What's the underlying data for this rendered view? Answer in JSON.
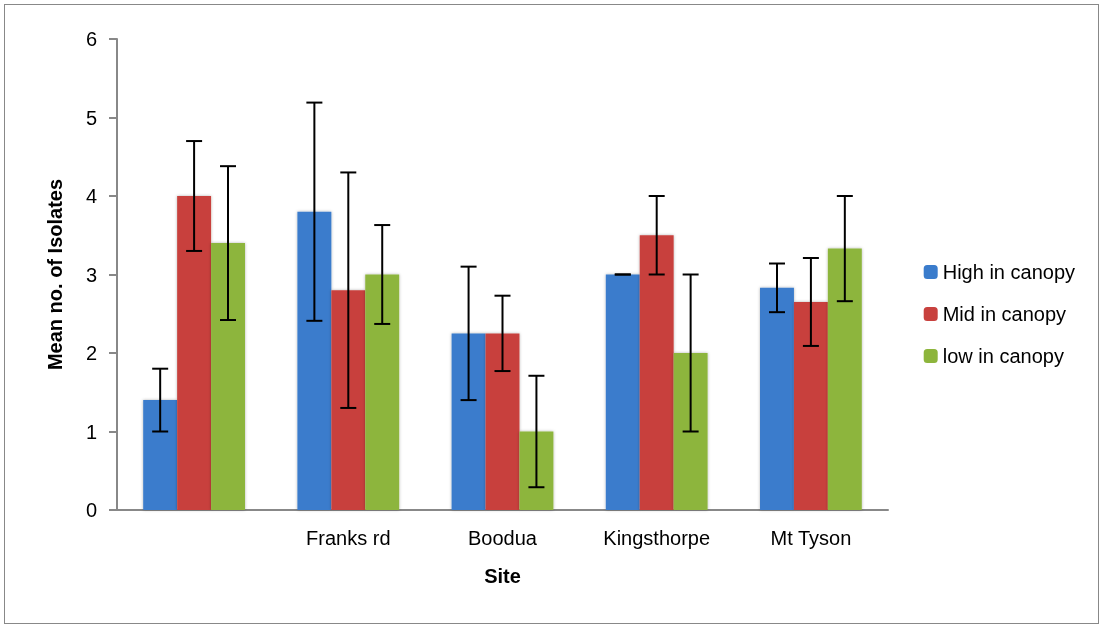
{
  "chart_data": {
    "type": "bar",
    "xlabel": "Site",
    "ylabel": "Mean no. of Isolates",
    "categories": [
      null,
      "Franks rd",
      "Boodua",
      "Kingsthorpe",
      "Mt Tyson"
    ],
    "series": [
      {
        "name": "High in canopy",
        "color": "#3a7ccc",
        "values": [
          1.4,
          3.8,
          2.25,
          3.0,
          2.83
        ],
        "errors": [
          0.4,
          1.39,
          0.85,
          0,
          0.31
        ]
      },
      {
        "name": "Mid in canopy",
        "color": "#c8413e",
        "values": [
          4.0,
          2.8,
          2.25,
          3.5,
          2.65
        ],
        "errors": [
          0.7,
          1.5,
          0.48,
          0.5,
          0.56
        ]
      },
      {
        "name": "low in canopy",
        "color": "#8db53c",
        "values": [
          3.4,
          3.0,
          1.0,
          2.0,
          3.33
        ],
        "errors": [
          0.98,
          0.63,
          0.71,
          1.0,
          0.67
        ]
      }
    ],
    "ylim": [
      0,
      6
    ],
    "yticks": [
      0,
      1,
      2,
      3,
      4,
      5,
      6
    ],
    "grid": false,
    "legend": "right"
  }
}
